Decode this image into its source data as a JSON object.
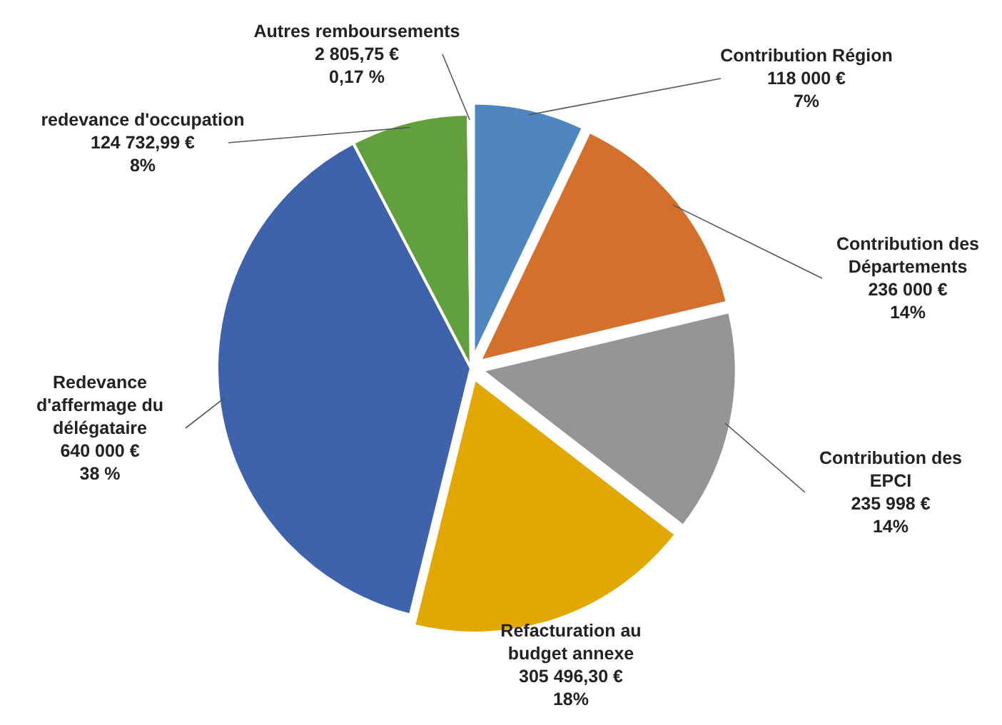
{
  "chart_data": {
    "type": "pie",
    "categories": [
      "Contribution Région",
      "Contribution des Départements",
      "Contribution des EPCI",
      "Refacturation au budget annexe",
      "Redevance d'affermage du délégataire",
      "redevance d'occupation",
      "Autres remboursements"
    ],
    "values": [
      118000,
      236000,
      235998,
      305496.3,
      640000,
      124732.99,
      2805.75
    ],
    "colors": [
      "#4f86c0",
      "#d4702c",
      "#959595",
      "#e2a700",
      "#3f62ad",
      "#61a03d",
      "#8fa9d6"
    ],
    "value_labels": [
      "118 000 €\n7%",
      "236 000 €\n14%",
      "235 998 €\n14%",
      "305 496,30 €\n18%",
      "640 000 €\n38 %",
      "124 732,99 €\n8%",
      "2 805,75 €\n0,17 %"
    ]
  }
}
